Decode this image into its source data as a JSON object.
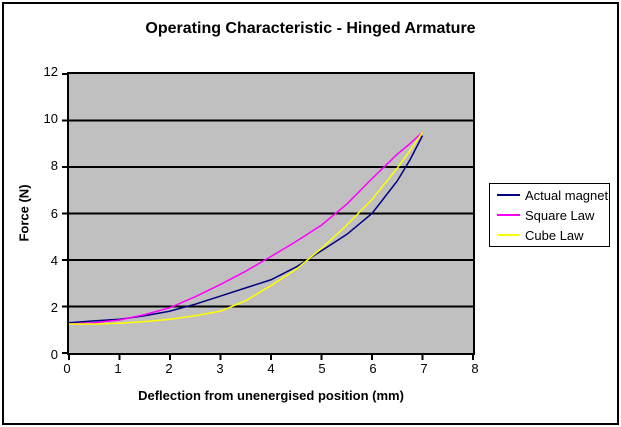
{
  "chart_data": {
    "type": "line",
    "title": "Operating Characteristic - Hinged Armature",
    "xlabel": "Deflection from unenergised position (mm)",
    "ylabel": "Force (N)",
    "xlim": [
      0,
      8
    ],
    "ylim": [
      0,
      12
    ],
    "x_ticks": [
      0,
      1,
      2,
      3,
      4,
      5,
      6,
      7,
      8
    ],
    "y_ticks": [
      0,
      2,
      4,
      6,
      8,
      10,
      12
    ],
    "gridline_values": [
      2,
      4,
      6,
      8,
      10
    ],
    "grid_on": true,
    "legend_position": "right",
    "x": [
      0,
      0.5,
      1,
      1.5,
      2,
      2.5,
      3,
      3.5,
      4,
      4.5,
      5,
      5.5,
      6,
      6.5,
      6.75,
      7
    ],
    "series": [
      {
        "name": "Actual magnet",
        "color": "#000080",
        "values": [
          1.3,
          1.38,
          1.45,
          1.6,
          1.8,
          2.1,
          2.45,
          2.8,
          3.15,
          3.7,
          4.4,
          5.1,
          6.0,
          7.4,
          8.3,
          9.35
        ]
      },
      {
        "name": "Square Law",
        "color": "#ff00ff",
        "values": [
          1.25,
          1.3,
          1.42,
          1.65,
          1.95,
          2.42,
          2.95,
          3.52,
          4.15,
          4.8,
          5.5,
          6.4,
          7.5,
          8.55,
          9.0,
          9.5
        ]
      },
      {
        "name": "Cube Law",
        "color": "#ffff00",
        "values": [
          1.25,
          1.25,
          1.28,
          1.35,
          1.45,
          1.6,
          1.8,
          2.25,
          2.9,
          3.6,
          4.5,
          5.5,
          6.6,
          7.95,
          8.7,
          9.5
        ]
      }
    ],
    "colors": {
      "plot_bg": "#c0c0c0",
      "grid": "#000000",
      "axis": "#000000",
      "chart_bg": "#ffffff",
      "legend_border": "#000000"
    }
  }
}
